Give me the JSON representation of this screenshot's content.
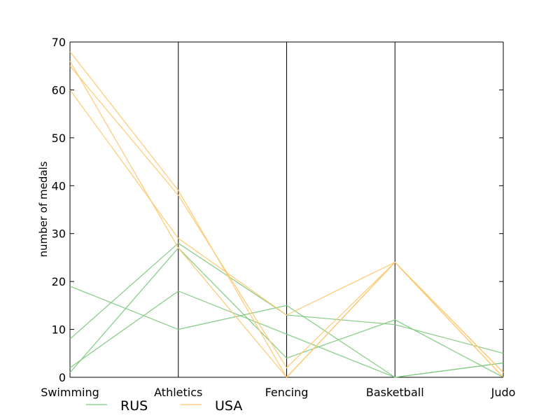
{
  "chart_data": {
    "type": "line",
    "ylabel": "number of medals",
    "categories": [
      "Swimming",
      "Athletics",
      "Fencing",
      "Basketball",
      "Judo"
    ],
    "ylim": [
      0,
      70
    ],
    "yticks": [
      0,
      10,
      20,
      30,
      40,
      50,
      60,
      70
    ],
    "legend_position": "bottom-left",
    "grid": false,
    "series": [
      {
        "name": "RUS",
        "color": "#7fc97f",
        "values": [
          19,
          10,
          15,
          0,
          3
        ]
      },
      {
        "name": "RUS",
        "color": "#7fc97f",
        "values": [
          8,
          28,
          13,
          11,
          5
        ]
      },
      {
        "name": "RUS",
        "color": "#7fc97f",
        "values": [
          2,
          18,
          9,
          0,
          3
        ]
      },
      {
        "name": "RUS",
        "color": "#7fc97f",
        "values": [
          1,
          27,
          4,
          12,
          0
        ]
      },
      {
        "name": "USA",
        "color": "#fdc86e",
        "values": [
          68,
          39,
          0,
          24,
          1
        ]
      },
      {
        "name": "USA",
        "color": "#fdc86e",
        "values": [
          66,
          27,
          0,
          24,
          0
        ]
      },
      {
        "name": "USA",
        "color": "#fdc86e",
        "values": [
          65,
          38,
          2,
          24,
          1
        ]
      },
      {
        "name": "USA",
        "color": "#fdc86e",
        "values": [
          60,
          29,
          13,
          24,
          0
        ]
      }
    ],
    "legend": [
      {
        "label": "RUS",
        "color": "#7fc97f"
      },
      {
        "label": "USA",
        "color": "#fdc86e"
      }
    ]
  }
}
